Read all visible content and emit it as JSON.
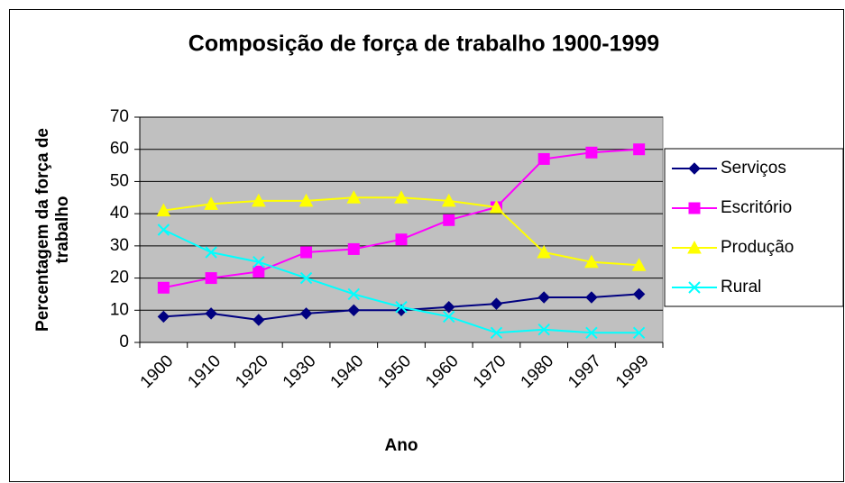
{
  "chart_data": {
    "type": "line",
    "title": "Composição de força de trabalho 1900-1999",
    "xlabel": "Ano",
    "ylabel": [
      "Percentagem da força de",
      "trabalho"
    ],
    "categories": [
      "1900",
      "1910",
      "1920",
      "1930",
      "1940",
      "1950",
      "1960",
      "1970",
      "1980",
      "1997",
      "1999"
    ],
    "series": [
      {
        "name": "Serviços",
        "color": "#000080",
        "marker": "diamond",
        "values": [
          8,
          9,
          7,
          9,
          10,
          10,
          11,
          12,
          14,
          14,
          15
        ]
      },
      {
        "name": "Escritório",
        "color": "#ff00ff",
        "marker": "square",
        "values": [
          17,
          20,
          22,
          28,
          29,
          32,
          38,
          42,
          57,
          59,
          60
        ]
      },
      {
        "name": "Produção",
        "color": "#ffff00",
        "marker": "triangle",
        "values": [
          41,
          43,
          44,
          44,
          45,
          45,
          44,
          42,
          28,
          25,
          24
        ]
      },
      {
        "name": "Rural",
        "color": "#00ffff",
        "marker": "x",
        "values": [
          35,
          28,
          25,
          20,
          15,
          11,
          8,
          3,
          4,
          3,
          3
        ]
      }
    ],
    "ylim": [
      0,
      70
    ],
    "yticks": [
      0,
      10,
      20,
      30,
      40,
      50,
      60,
      70
    ],
    "grid": true,
    "legend": "right"
  }
}
